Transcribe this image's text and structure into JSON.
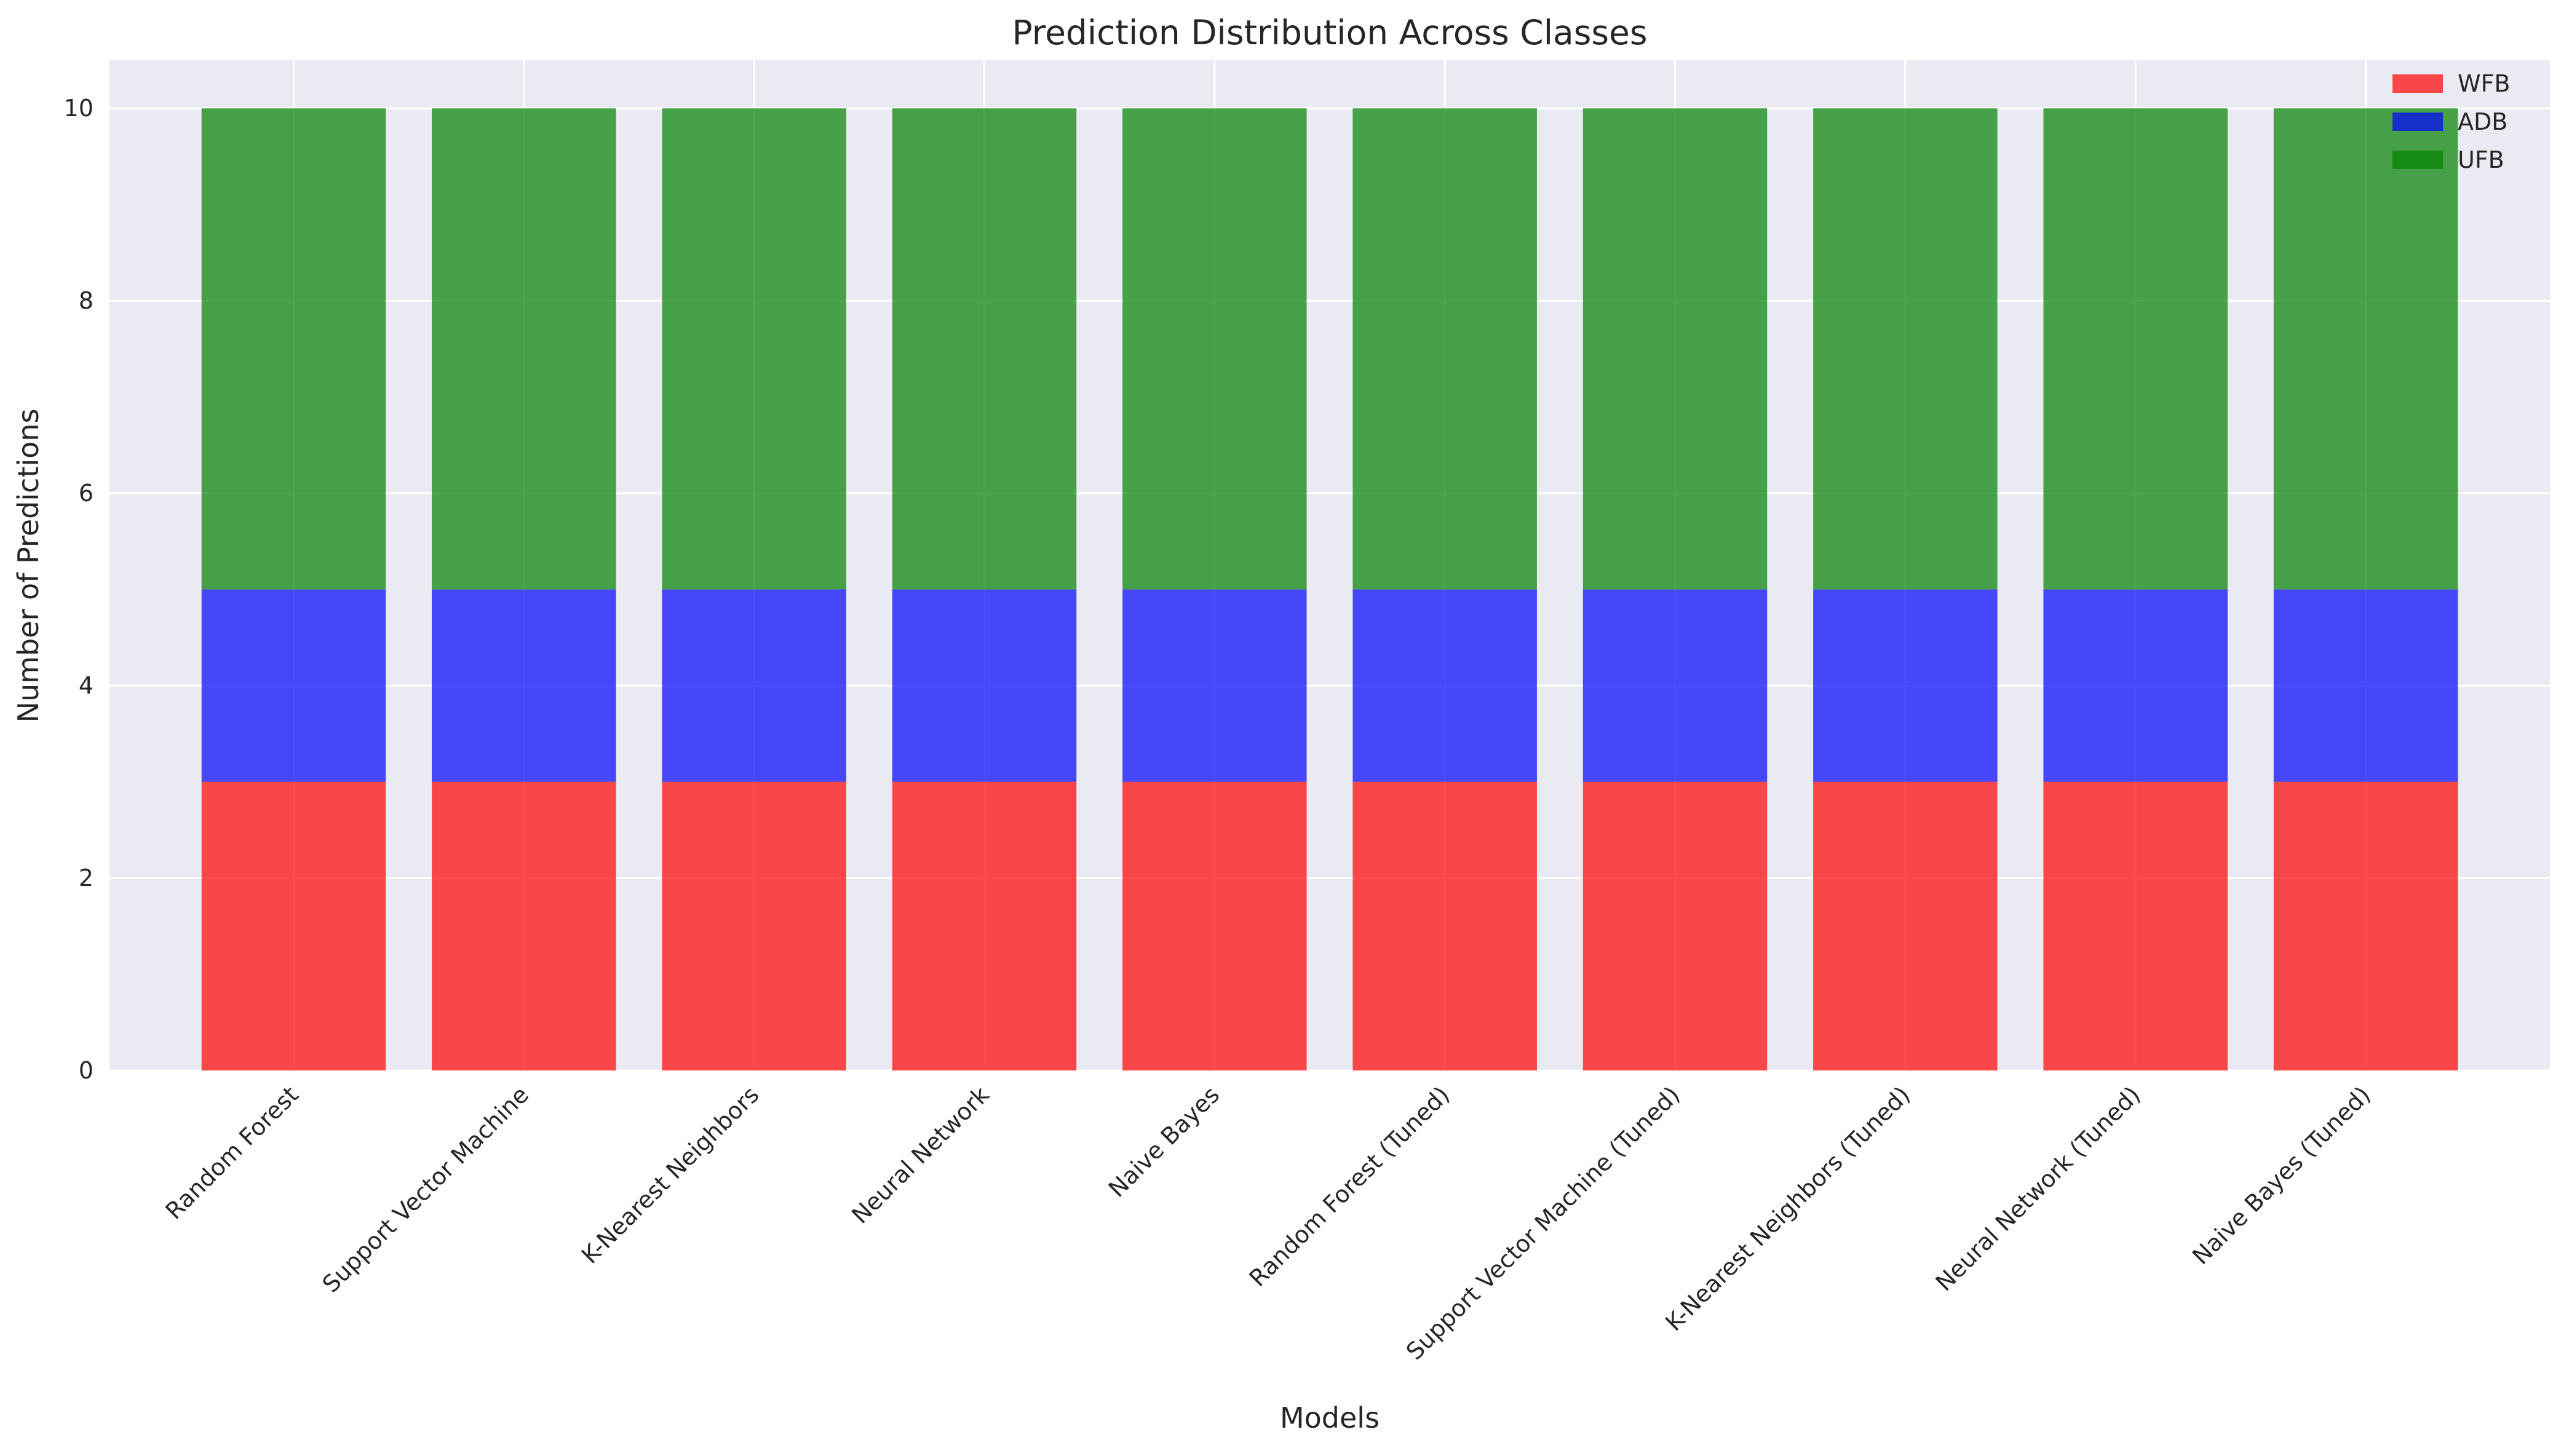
{
  "colors": {
    "plot_background": "#EAEAF2",
    "grid": "#FFFFFF",
    "text": "#262626"
  },
  "chart_data": {
    "type": "bar",
    "stacked": true,
    "title": "Prediction Distribution Across Classes",
    "xlabel": "Models",
    "ylabel": "Number of Predictions",
    "categories": [
      "Random Forest",
      "Support Vector Machine",
      "K-Nearest Neighbors",
      "Neural Network",
      "Naive Bayes",
      "Random Forest (Tuned)",
      "Support Vector Machine (Tuned)",
      "K-Nearest Neighbors (Tuned)",
      "Neural Network (Tuned)",
      "Naive Bayes (Tuned)"
    ],
    "series": [
      {
        "name": "WFB",
        "color": "#FF0000",
        "opacity": 0.7,
        "values": [
          3,
          3,
          3,
          3,
          3,
          3,
          3,
          3,
          3,
          3
        ]
      },
      {
        "name": "ADB",
        "color": "#0000FF",
        "opacity": 0.7,
        "values": [
          2,
          2,
          2,
          2,
          2,
          2,
          2,
          2,
          2,
          2
        ]
      },
      {
        "name": "UFB",
        "color": "#008000",
        "opacity": 0.7,
        "values": [
          5,
          5,
          5,
          5,
          5,
          5,
          5,
          5,
          5,
          5
        ]
      }
    ],
    "ylim": [
      0,
      10.5
    ],
    "yticks": [
      0,
      2,
      4,
      6,
      8,
      10
    ],
    "grid": true,
    "legend_position": "top-right"
  }
}
